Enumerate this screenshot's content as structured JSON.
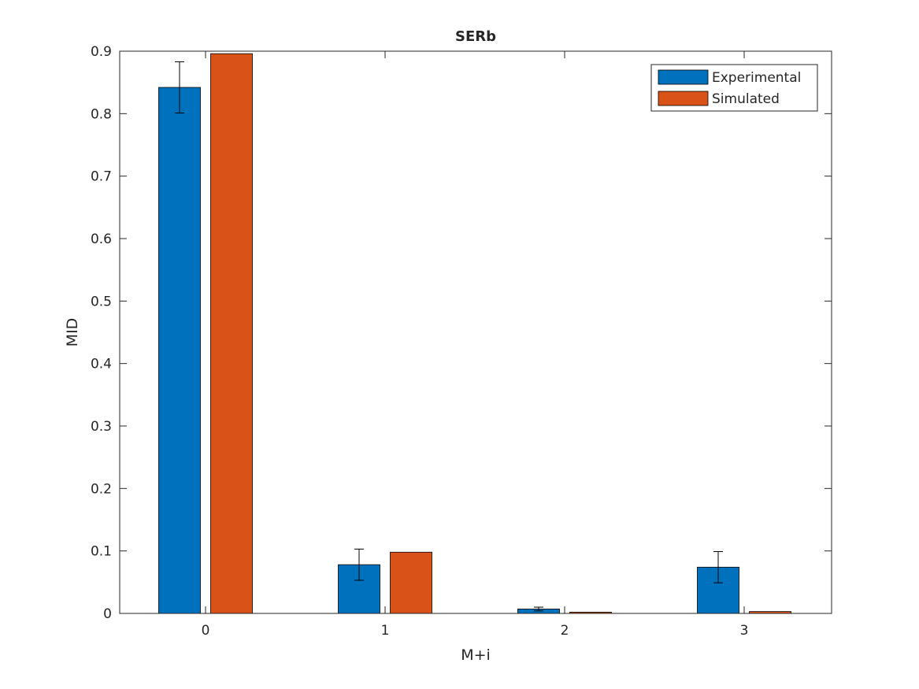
{
  "chart_data": {
    "type": "bar",
    "title": "SERb",
    "xlabel": "M+i",
    "ylabel": "MID",
    "categories": [
      "0",
      "1",
      "2",
      "3"
    ],
    "ylim": [
      0,
      0.9
    ],
    "yticks": [
      "0",
      "0.1",
      "0.2",
      "0.3",
      "0.4",
      "0.5",
      "0.6",
      "0.7",
      "0.8",
      "0.9"
    ],
    "grid": false,
    "legend_position": "top-right",
    "series": [
      {
        "name": "Experimental",
        "color": "#0072BD",
        "values": [
          0.842,
          0.078,
          0.007,
          0.074
        ],
        "error": [
          0.041,
          0.025,
          0.003,
          0.025
        ]
      },
      {
        "name": "Simulated",
        "color": "#D95319",
        "values": [
          0.896,
          0.098,
          0.002,
          0.003
        ],
        "error": [
          0,
          0,
          0,
          0
        ]
      }
    ]
  }
}
